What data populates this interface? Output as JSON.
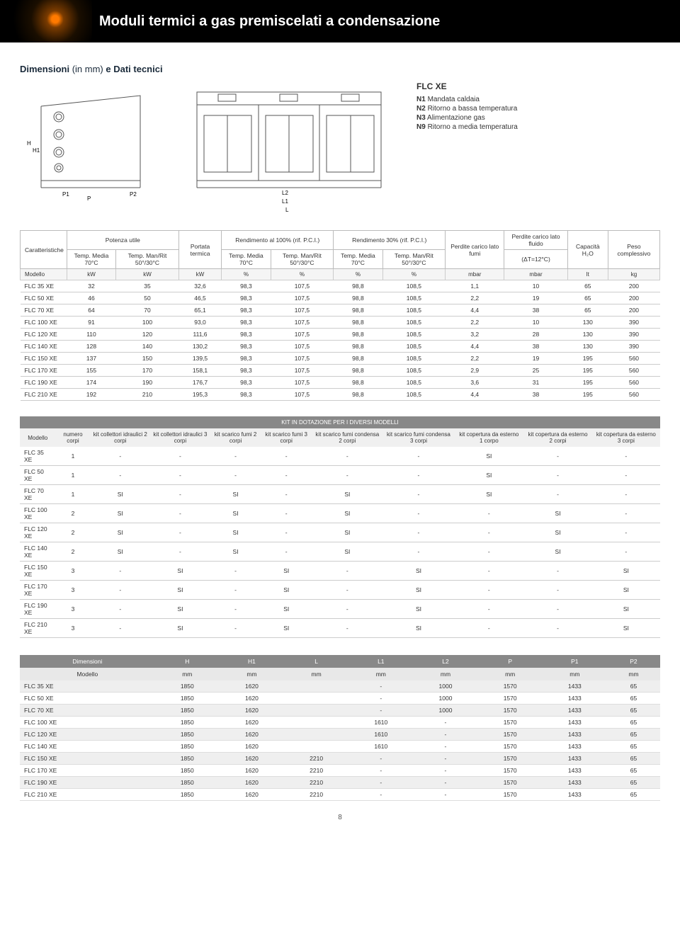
{
  "header": {
    "title": "Moduli termici a gas premiscelati a condensazione"
  },
  "section": {
    "dim_title_bold": "Dimensioni",
    "dim_title_thin": "(in mm)",
    "dim_title_bold2": "e Dati tecnici"
  },
  "legend": {
    "title": "FLC XE",
    "items": [
      {
        "code": "N1",
        "text": "Mandata caldaia"
      },
      {
        "code": "N2",
        "text": "Ritorno a bassa temperatura"
      },
      {
        "code": "N3",
        "text": "Alimentazione gas"
      },
      {
        "code": "N9",
        "text": "Ritorno a media temperatura"
      }
    ]
  },
  "diagram_labels": {
    "H": "H",
    "H1": "H1",
    "P1": "P1",
    "P2": "P2",
    "P": "P",
    "L2": "L2",
    "L1": "L1",
    "L": "L"
  },
  "table_caratt": {
    "col_groups": {
      "caratt": "Caratteristiche",
      "potenza": "Potenza utile",
      "portata": "Portata termica",
      "rend100": "Rendimento al 100% (rif. P.C.I.)",
      "rend30": "Rendimento 30% (rif. P.C.I.)",
      "perdite_fumi": "Perdite carico lato fumi",
      "perdite_fluido": "Perdite carico lato fluido",
      "capacita": "Capacità H₂O",
      "peso": "Peso complessivo"
    },
    "subheads": {
      "media70": "Temp. Media 70°C",
      "manrit": "Temp. Man/Rit 50°/30°C",
      "dt": "(ΔT=12°C)"
    },
    "units_row": {
      "modello": "Modello",
      "cells": [
        "kW",
        "kW",
        "kW",
        "%",
        "%",
        "%",
        "%",
        "mbar",
        "mbar",
        "lt",
        "kg"
      ]
    },
    "rows": [
      {
        "m": "FLC 35 XE",
        "v": [
          32,
          35,
          "32,6",
          "98,3",
          "107,5",
          "98,8",
          "108,5",
          "1,1",
          10,
          65,
          200
        ]
      },
      {
        "m": "FLC 50 XE",
        "v": [
          46,
          50,
          "46,5",
          "98,3",
          "107,5",
          "98,8",
          "108,5",
          "2,2",
          19,
          65,
          200
        ]
      },
      {
        "m": "FLC 70 XE",
        "v": [
          64,
          70,
          "65,1",
          "98,3",
          "107,5",
          "98,8",
          "108,5",
          "4,4",
          38,
          65,
          200
        ]
      },
      {
        "m": "FLC 100 XE",
        "v": [
          91,
          100,
          "93,0",
          "98,3",
          "107,5",
          "98,8",
          "108,5",
          "2,2",
          10,
          130,
          390
        ]
      },
      {
        "m": "FLC 120 XE",
        "v": [
          110,
          120,
          "111,6",
          "98,3",
          "107,5",
          "98,8",
          "108,5",
          "3,2",
          28,
          130,
          390
        ]
      },
      {
        "m": "FLC 140 XE",
        "v": [
          128,
          140,
          "130,2",
          "98,3",
          "107,5",
          "98,8",
          "108,5",
          "4,4",
          38,
          130,
          390
        ]
      },
      {
        "m": "FLC 150 XE",
        "v": [
          137,
          150,
          "139,5",
          "98,3",
          "107,5",
          "98,8",
          "108,5",
          "2,2",
          19,
          195,
          560
        ]
      },
      {
        "m": "FLC 170 XE",
        "v": [
          155,
          170,
          "158,1",
          "98,3",
          "107,5",
          "98,8",
          "108,5",
          "2,9",
          25,
          195,
          560
        ]
      },
      {
        "m": "FLC 190 XE",
        "v": [
          174,
          190,
          "176,7",
          "98,3",
          "107,5",
          "98,8",
          "108,5",
          "3,6",
          31,
          195,
          560
        ]
      },
      {
        "m": "FLC 210 XE",
        "v": [
          192,
          210,
          "195,3",
          "98,3",
          "107,5",
          "98,8",
          "108,5",
          "4,4",
          38,
          195,
          560
        ]
      }
    ]
  },
  "table_kit": {
    "title": "KIT IN DOTAZIONE PER I DIVERSI MODELLI",
    "heads": [
      "Modello",
      "numero corpi",
      "kit collettori idraulici 2 corpi",
      "kit collettori idraulici 3 corpi",
      "kit scarico fumi 2 corpi",
      "kit scarico fumi 3 corpi",
      "kit scarico fumi condensa 2 corpi",
      "kit scarico fumi condensa 3 corpi",
      "kit copertura da esterno 1 corpo",
      "kit copertura da esterno 2 corpi",
      "kit copertura da esterno 3 corpi"
    ],
    "rows": [
      {
        "m": "FLC 35 XE",
        "v": [
          1,
          "-",
          "-",
          "-",
          "-",
          "-",
          "-",
          "SI",
          "-",
          "-"
        ]
      },
      {
        "m": "FLC 50 XE",
        "v": [
          1,
          "-",
          "-",
          "-",
          "-",
          "-",
          "-",
          "SI",
          "-",
          "-"
        ]
      },
      {
        "m": "FLC 70 XE",
        "v": [
          1,
          "SI",
          "-",
          "SI",
          "-",
          "SI",
          "-",
          "SI",
          "-",
          "-"
        ]
      },
      {
        "m": "FLC 100 XE",
        "v": [
          2,
          "SI",
          "-",
          "SI",
          "-",
          "SI",
          "-",
          "-",
          "SI",
          "-"
        ]
      },
      {
        "m": "FLC 120 XE",
        "v": [
          2,
          "SI",
          "-",
          "SI",
          "-",
          "SI",
          "-",
          "-",
          "SI",
          "-"
        ]
      },
      {
        "m": "FLC 140 XE",
        "v": [
          2,
          "SI",
          "-",
          "SI",
          "-",
          "SI",
          "-",
          "-",
          "SI",
          "-"
        ]
      },
      {
        "m": "FLC 150 XE",
        "v": [
          3,
          "-",
          "SI",
          "-",
          "SI",
          "-",
          "SI",
          "-",
          "-",
          "SI"
        ]
      },
      {
        "m": "FLC 170 XE",
        "v": [
          3,
          "-",
          "SI",
          "-",
          "SI",
          "-",
          "SI",
          "-",
          "-",
          "SI"
        ]
      },
      {
        "m": "FLC 190 XE",
        "v": [
          3,
          "-",
          "SI",
          "-",
          "SI",
          "-",
          "SI",
          "-",
          "-",
          "SI"
        ]
      },
      {
        "m": "FLC 210 XE",
        "v": [
          3,
          "-",
          "SI",
          "-",
          "SI",
          "-",
          "SI",
          "-",
          "-",
          "SI"
        ]
      }
    ]
  },
  "table_dim": {
    "heads": [
      "Dimensioni",
      "H",
      "H1",
      "L",
      "L1",
      "L2",
      "P",
      "P1",
      "P2"
    ],
    "units": [
      "Modello",
      "mm",
      "mm",
      "mm",
      "mm",
      "mm",
      "mm",
      "mm",
      "mm"
    ],
    "rows": [
      {
        "m": "FLC 35 XE",
        "v": [
          1850,
          1620,
          "",
          "-",
          1000,
          1570,
          1433,
          65
        ]
      },
      {
        "m": "FLC 50 XE",
        "v": [
          1850,
          1620,
          "",
          "-",
          1000,
          1570,
          1433,
          65
        ]
      },
      {
        "m": "FLC 70 XE",
        "v": [
          1850,
          1620,
          "",
          "-",
          1000,
          1570,
          1433,
          65
        ]
      },
      {
        "m": "FLC 100 XE",
        "v": [
          1850,
          1620,
          "",
          1610,
          "-",
          1570,
          1433,
          65
        ]
      },
      {
        "m": "FLC 120 XE",
        "v": [
          1850,
          1620,
          "",
          1610,
          "-",
          1570,
          1433,
          65
        ]
      },
      {
        "m": "FLC 140 XE",
        "v": [
          1850,
          1620,
          "",
          1610,
          "-",
          1570,
          1433,
          65
        ]
      },
      {
        "m": "FLC 150 XE",
        "v": [
          1850,
          1620,
          2210,
          "-",
          "-",
          1570,
          1433,
          65
        ]
      },
      {
        "m": "FLC 170 XE",
        "v": [
          1850,
          1620,
          2210,
          "-",
          "-",
          1570,
          1433,
          65
        ]
      },
      {
        "m": "FLC 190 XE",
        "v": [
          1850,
          1620,
          2210,
          "-",
          "-",
          1570,
          1433,
          65
        ]
      },
      {
        "m": "FLC 210 XE",
        "v": [
          1850,
          1620,
          2210,
          "-",
          "-",
          1570,
          1433,
          65
        ]
      }
    ]
  },
  "pagenum": "8",
  "styling": {
    "header_bg": "#000000",
    "header_color": "#ffffff",
    "header_fontsize_pt": 15,
    "body_fontsize_pt": 8.5,
    "table_border_color": "#cccccc",
    "row_alt_bg": "#efefef",
    "kit_header_bg": "#888888",
    "kit_header_color": "#ffffff",
    "svg_stroke": "#555555",
    "svg_stroke_width": 1
  }
}
